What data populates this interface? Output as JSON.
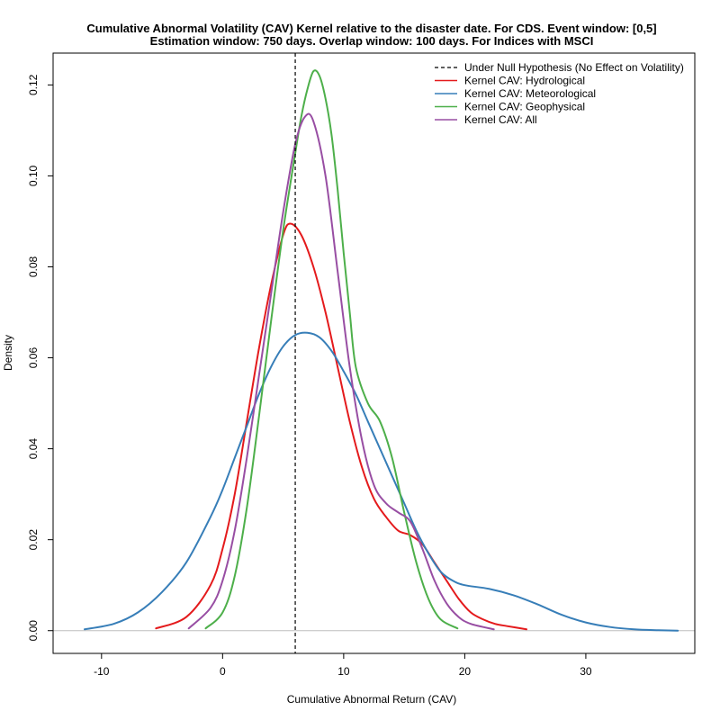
{
  "chart_data": {
    "type": "line",
    "title": "Cumulative Abnormal Volatility (CAV) Kernel relative to the disaster date. For CDS. Event window: [0,5]",
    "subtitle": "Estimation window: 750 days. Overlap window: 100 days. For Indices with MSCI",
    "xlabel": "Cumulative Abnormal Return (CAV)",
    "ylabel": "Density",
    "xlim": [
      -14,
      39
    ],
    "ylim": [
      -0.005,
      0.127
    ],
    "xticks": [
      -10,
      0,
      10,
      20,
      30
    ],
    "xtick_labels": [
      "-10",
      "0",
      "10",
      "20",
      "30"
    ],
    "yticks": [
      0.0,
      0.02,
      0.04,
      0.06,
      0.08,
      0.1,
      0.12
    ],
    "ytick_labels": [
      "0.00",
      "0.02",
      "0.04",
      "0.06",
      "0.08",
      "0.10",
      "0.12"
    ],
    "grid": false,
    "legend_position": "top-right",
    "baseline": {
      "y": 0,
      "color": "#bebebe"
    },
    "reference_line": {
      "name": "Under Null Hypothesis (No Effect on Volatility)",
      "x": 6,
      "style": "dashed",
      "color": "#000000"
    },
    "series": [
      {
        "name": "Kernel CAV: Hydrological",
        "color": "#e41a1c",
        "x": [
          -5.5,
          -3,
          -1,
          0,
          1,
          2,
          3,
          4,
          5,
          5.6,
          6.5,
          7.5,
          8.5,
          9.5,
          10.5,
          11.5,
          12.5,
          13.5,
          14.5,
          15.5,
          16.5,
          17.5,
          18.5,
          19.5,
          20.5,
          21.5,
          22.5,
          23.5,
          25.1
        ],
        "y": [
          0.0005,
          0.003,
          0.01,
          0.018,
          0.03,
          0.046,
          0.062,
          0.076,
          0.087,
          0.0895,
          0.087,
          0.08,
          0.07,
          0.058,
          0.046,
          0.036,
          0.029,
          0.025,
          0.022,
          0.021,
          0.019,
          0.015,
          0.011,
          0.007,
          0.004,
          0.0025,
          0.0015,
          0.001,
          0.0003
        ]
      },
      {
        "name": "Kernel CAV: Meteorological",
        "color": "#377eb8",
        "x": [
          -11.4,
          -9,
          -7,
          -5,
          -3,
          -1,
          0,
          1,
          2,
          3,
          4,
          5,
          6,
          7,
          8,
          9,
          10,
          11,
          12,
          13,
          14,
          15,
          16,
          17,
          18,
          19,
          20,
          22,
          24,
          26,
          28,
          30,
          32,
          34,
          36,
          37.6
        ],
        "y": [
          0.0003,
          0.0015,
          0.004,
          0.0085,
          0.015,
          0.025,
          0.031,
          0.038,
          0.045,
          0.052,
          0.058,
          0.0625,
          0.065,
          0.0655,
          0.0645,
          0.0615,
          0.057,
          0.052,
          0.046,
          0.04,
          0.034,
          0.028,
          0.022,
          0.017,
          0.013,
          0.011,
          0.01,
          0.0092,
          0.0078,
          0.0058,
          0.0035,
          0.0018,
          0.0008,
          0.0003,
          0.0001,
          0.0
        ]
      },
      {
        "name": "Kernel CAV: Geophysical",
        "color": "#4daf4a",
        "x": [
          -1.4,
          0,
          1,
          2,
          3,
          4,
          5,
          6,
          6.5,
          7,
          7.5,
          8,
          8.5,
          9,
          9.5,
          10,
          10.5,
          11,
          12,
          13,
          14,
          15,
          16,
          17,
          18,
          19.4
        ],
        "y": [
          0.0005,
          0.004,
          0.012,
          0.027,
          0.047,
          0.068,
          0.088,
          0.105,
          0.113,
          0.119,
          0.123,
          0.122,
          0.117,
          0.109,
          0.097,
          0.083,
          0.07,
          0.058,
          0.05,
          0.046,
          0.038,
          0.026,
          0.015,
          0.007,
          0.0025,
          0.0005
        ]
      },
      {
        "name": "Kernel CAV: All",
        "color": "#984ea3",
        "x": [
          -2.8,
          -1,
          0,
          1,
          2,
          3,
          4,
          5,
          6,
          6.8,
          7.5,
          8.5,
          9.5,
          10.5,
          11.5,
          12.5,
          13.5,
          14.5,
          15.5,
          16.5,
          17.5,
          18.5,
          19.5,
          20.5,
          22.4
        ],
        "y": [
          0.0005,
          0.005,
          0.011,
          0.022,
          0.038,
          0.056,
          0.074,
          0.092,
          0.107,
          0.113,
          0.112,
          0.1,
          0.079,
          0.058,
          0.042,
          0.032,
          0.028,
          0.026,
          0.024,
          0.018,
          0.011,
          0.006,
          0.003,
          0.0015,
          0.0003
        ]
      }
    ]
  }
}
